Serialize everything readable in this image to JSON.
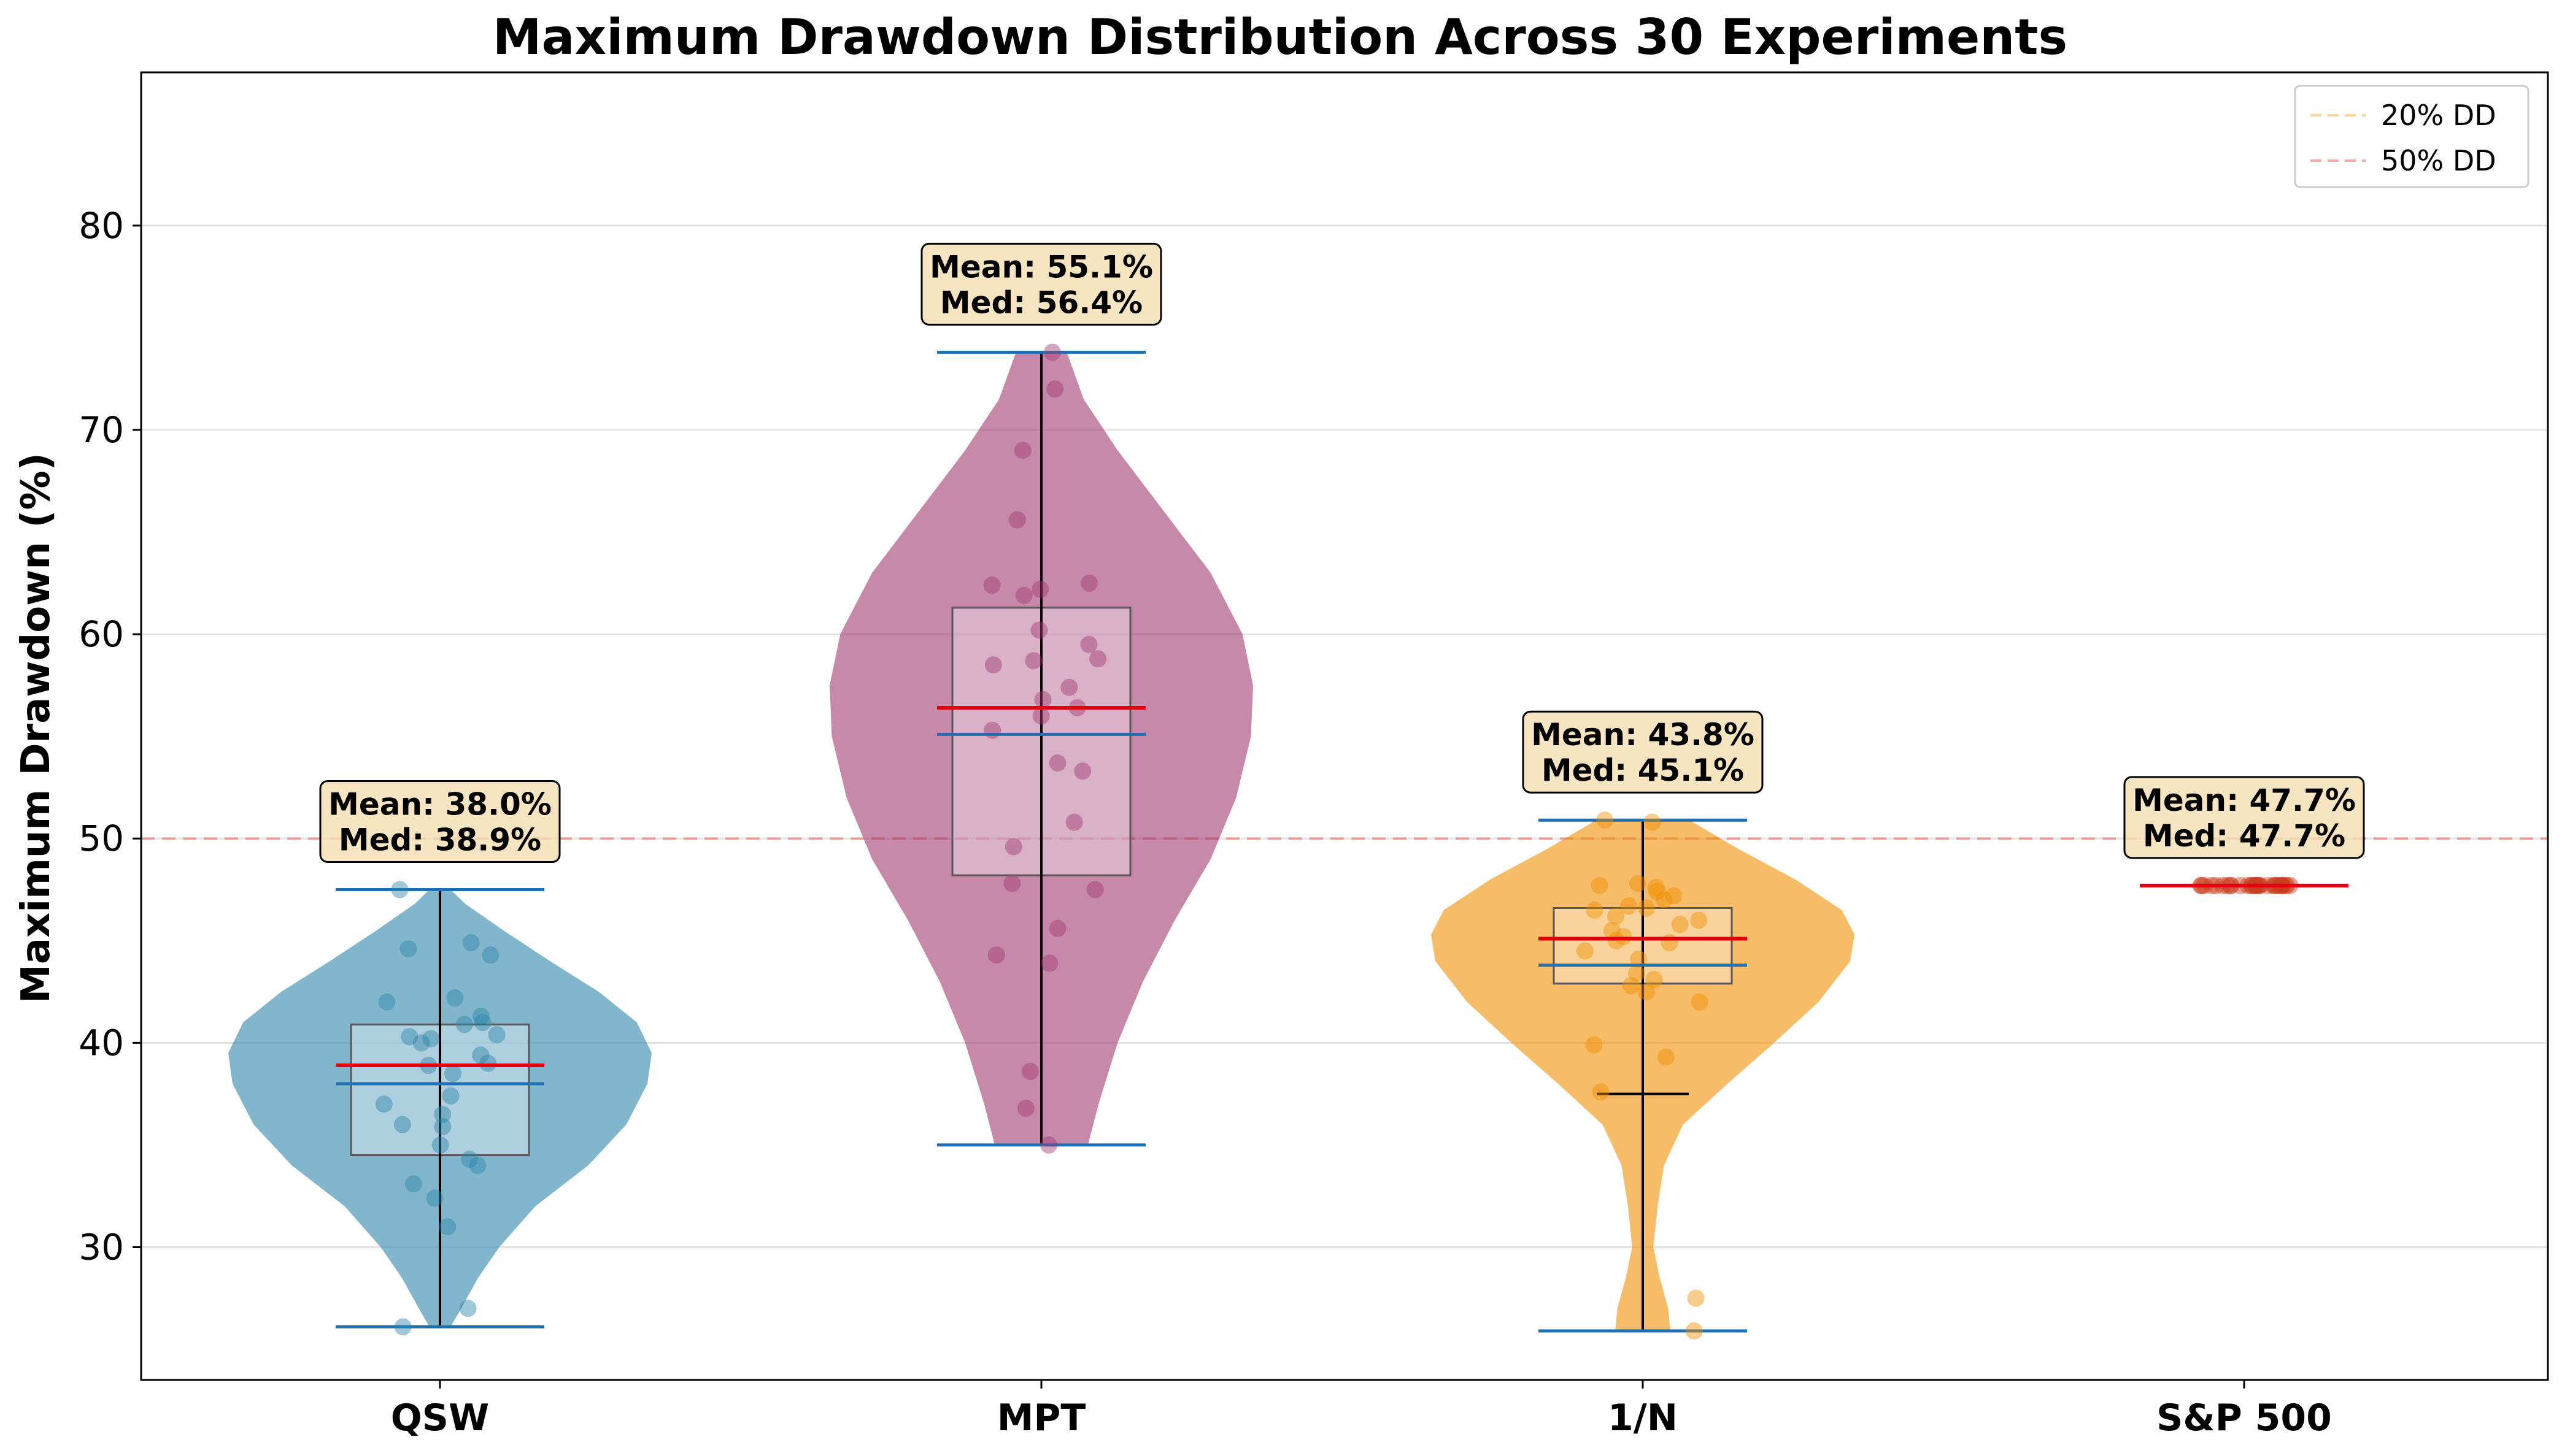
{
  "chart_data": {
    "type": "violin",
    "title": "Maximum Drawdown Distribution Across 30 Experiments",
    "xlabel": "",
    "ylabel": "Maximum Drawdown (%)",
    "ylim": [
      23.5,
      87.5
    ],
    "yticks": [
      30,
      40,
      50,
      60,
      70,
      80
    ],
    "grid": "horizontal",
    "legend_position": "top-right",
    "reference_lines": [
      {
        "name": "20% DD",
        "value": 20,
        "color": "#f5a623",
        "style": "dashed"
      },
      {
        "name": "50% DD",
        "value": 50,
        "color": "#e74c3c",
        "style": "dashed"
      }
    ],
    "categories": [
      "QSW",
      "MPT",
      "1/N",
      "S&P 500"
    ],
    "series": [
      {
        "category": "QSW",
        "color": "#2e86ab",
        "mean": 38.0,
        "median": 38.9,
        "min": 26.1,
        "max": 47.5,
        "q1": 34.5,
        "q3": 40.9,
        "annotation": [
          "Mean: 38.0%",
          "Med: 38.9%"
        ],
        "density": [
          [
            26.1,
            0.05
          ],
          [
            27,
            0.1
          ],
          [
            28.5,
            0.18
          ],
          [
            30,
            0.28
          ],
          [
            32,
            0.45
          ],
          [
            34,
            0.7
          ],
          [
            36,
            0.88
          ],
          [
            38,
            0.98
          ],
          [
            39.5,
            1.0
          ],
          [
            41,
            0.93
          ],
          [
            42.5,
            0.75
          ],
          [
            44,
            0.52
          ],
          [
            45.5,
            0.3
          ],
          [
            46.8,
            0.12
          ],
          [
            47.5,
            0.05
          ]
        ],
        "points": [
          26.1,
          27.0,
          31.0,
          32.4,
          33.1,
          34.0,
          34.3,
          35.0,
          35.9,
          36.5,
          37.0,
          37.4,
          38.5,
          38.9,
          39.4,
          40.0,
          40.2,
          40.3,
          40.4,
          40.9,
          41.0,
          41.3,
          42.0,
          42.2,
          44.3,
          44.6,
          44.9,
          47.5,
          39.0,
          36.0
        ]
      },
      {
        "category": "MPT",
        "color": "#a23b72",
        "mean": 55.1,
        "median": 56.4,
        "min": 35.0,
        "max": 73.8,
        "q1": 48.2,
        "q3": 61.3,
        "annotation": [
          "Mean: 55.1%",
          "Med: 56.4%"
        ],
        "density": [
          [
            35,
            0.22
          ],
          [
            37,
            0.27
          ],
          [
            40,
            0.36
          ],
          [
            43,
            0.48
          ],
          [
            46,
            0.63
          ],
          [
            49,
            0.8
          ],
          [
            52,
            0.92
          ],
          [
            55,
            0.99
          ],
          [
            57.5,
            1.0
          ],
          [
            60,
            0.95
          ],
          [
            63,
            0.8
          ],
          [
            66,
            0.58
          ],
          [
            69,
            0.36
          ],
          [
            71.5,
            0.2
          ],
          [
            73.8,
            0.12
          ]
        ],
        "points": [
          35.0,
          36.8,
          38.6,
          43.9,
          44.3,
          45.6,
          47.5,
          47.8,
          49.6,
          50.8,
          53.3,
          53.7,
          55.3,
          56.0,
          56.4,
          57.4,
          58.5,
          58.7,
          58.8,
          59.5,
          60.2,
          61.9,
          62.2,
          62.4,
          62.5,
          65.6,
          69.0,
          72.0,
          73.8,
          56.8
        ]
      },
      {
        "category": "1/N",
        "color": "#f18f01",
        "mean": 43.8,
        "median": 45.1,
        "min": 25.9,
        "max": 50.9,
        "q1": 42.9,
        "q3": 46.6,
        "whisker_low": 37.5,
        "annotation": [
          "Mean: 43.8%",
          "Med: 45.1%"
        ],
        "density": [
          [
            25.9,
            0.13
          ],
          [
            27,
            0.12
          ],
          [
            28.5,
            0.08
          ],
          [
            30,
            0.05
          ],
          [
            32,
            0.07
          ],
          [
            34,
            0.1
          ],
          [
            36,
            0.19
          ],
          [
            38,
            0.4
          ],
          [
            40,
            0.62
          ],
          [
            42,
            0.83
          ],
          [
            44,
            0.98
          ],
          [
            45.3,
            1.0
          ],
          [
            46.5,
            0.94
          ],
          [
            48,
            0.72
          ],
          [
            49.5,
            0.45
          ],
          [
            50.9,
            0.22
          ]
        ],
        "points": [
          25.9,
          27.5,
          37.6,
          39.3,
          39.9,
          42.0,
          42.5,
          42.8,
          43.1,
          43.4,
          44.1,
          44.5,
          44.9,
          45.2,
          45.5,
          45.8,
          46.0,
          46.2,
          46.5,
          46.6,
          46.7,
          47.0,
          47.2,
          47.4,
          47.6,
          47.7,
          47.8,
          50.8,
          50.9,
          45.0
        ]
      },
      {
        "category": "S&P 500",
        "color": "#c73e1d",
        "mean": 47.7,
        "median": 47.7,
        "min": 47.7,
        "max": 47.7,
        "q1": 47.7,
        "q3": 47.7,
        "annotation": [
          "Mean: 47.7%",
          "Med: 47.7%"
        ],
        "density": [],
        "points": [
          47.7,
          47.7,
          47.7,
          47.7,
          47.7,
          47.7,
          47.7,
          47.7,
          47.7,
          47.7,
          47.7,
          47.7,
          47.7,
          47.7,
          47.7,
          47.7,
          47.7,
          47.7,
          47.7,
          47.7,
          47.7,
          47.7,
          47.7,
          47.7,
          47.7,
          47.7,
          47.7,
          47.7,
          47.7,
          47.7
        ]
      }
    ]
  }
}
